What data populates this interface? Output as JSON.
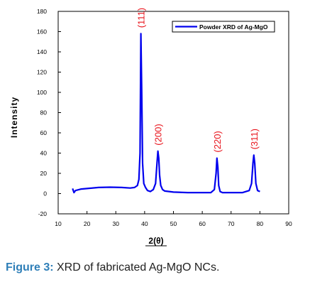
{
  "chart_data": {
    "type": "line",
    "ylabel": "Intensity",
    "xlabel": "2(θ)",
    "xlim": [
      10,
      90
    ],
    "ylim": [
      -20,
      180
    ],
    "x_ticks": [
      10,
      20,
      30,
      40,
      50,
      60,
      70,
      80,
      90
    ],
    "y_ticks": [
      -20,
      0,
      20,
      40,
      60,
      80,
      100,
      120,
      140,
      160,
      180
    ],
    "grid": false,
    "legend_position": "top-right",
    "series": [
      {
        "name": "Powder XRD of Ag-MgO",
        "color": "#0000ee",
        "x": [
          15,
          15.5,
          16,
          18,
          20,
          24,
          28,
          32,
          35,
          36.5,
          37.5,
          38.0,
          38.4,
          38.7,
          39.0,
          39.3,
          39.7,
          40.3,
          41,
          42,
          43,
          43.8,
          44.3,
          44.6,
          44.9,
          45.2,
          45.6,
          46.2,
          47,
          50,
          55,
          60,
          63,
          64.2,
          64.8,
          65.1,
          65.4,
          65.7,
          66.2,
          67,
          70,
          74,
          76.3,
          77.1,
          77.6,
          77.9,
          78.2,
          78.6,
          79.2,
          80
        ],
        "y": [
          5,
          1,
          3,
          4.5,
          5,
          6,
          6.3,
          6,
          5.5,
          6,
          8,
          14,
          40,
          158,
          100,
          30,
          10,
          6,
          3,
          2,
          4,
          10,
          30,
          42,
          35,
          18,
          8,
          4,
          2.5,
          1.5,
          1,
          1,
          1,
          4,
          20,
          35,
          26,
          8,
          2,
          1,
          1,
          1,
          3,
          10,
          30,
          38,
          30,
          10,
          3,
          2
        ]
      }
    ],
    "annotations": [
      {
        "text": "(111)",
        "x": 38.7,
        "y": 158
      },
      {
        "text": "(200)",
        "x": 44.6,
        "y": 42
      },
      {
        "text": "(220)",
        "x": 65.1,
        "y": 35
      },
      {
        "text": "(311)",
        "x": 77.9,
        "y": 38
      }
    ],
    "colors": {
      "annotation": "#e8131b",
      "series": "#0000ee"
    }
  },
  "caption": {
    "label": "Figure 3:",
    "text": " XRD of fabricated Ag-MgO NCs."
  }
}
